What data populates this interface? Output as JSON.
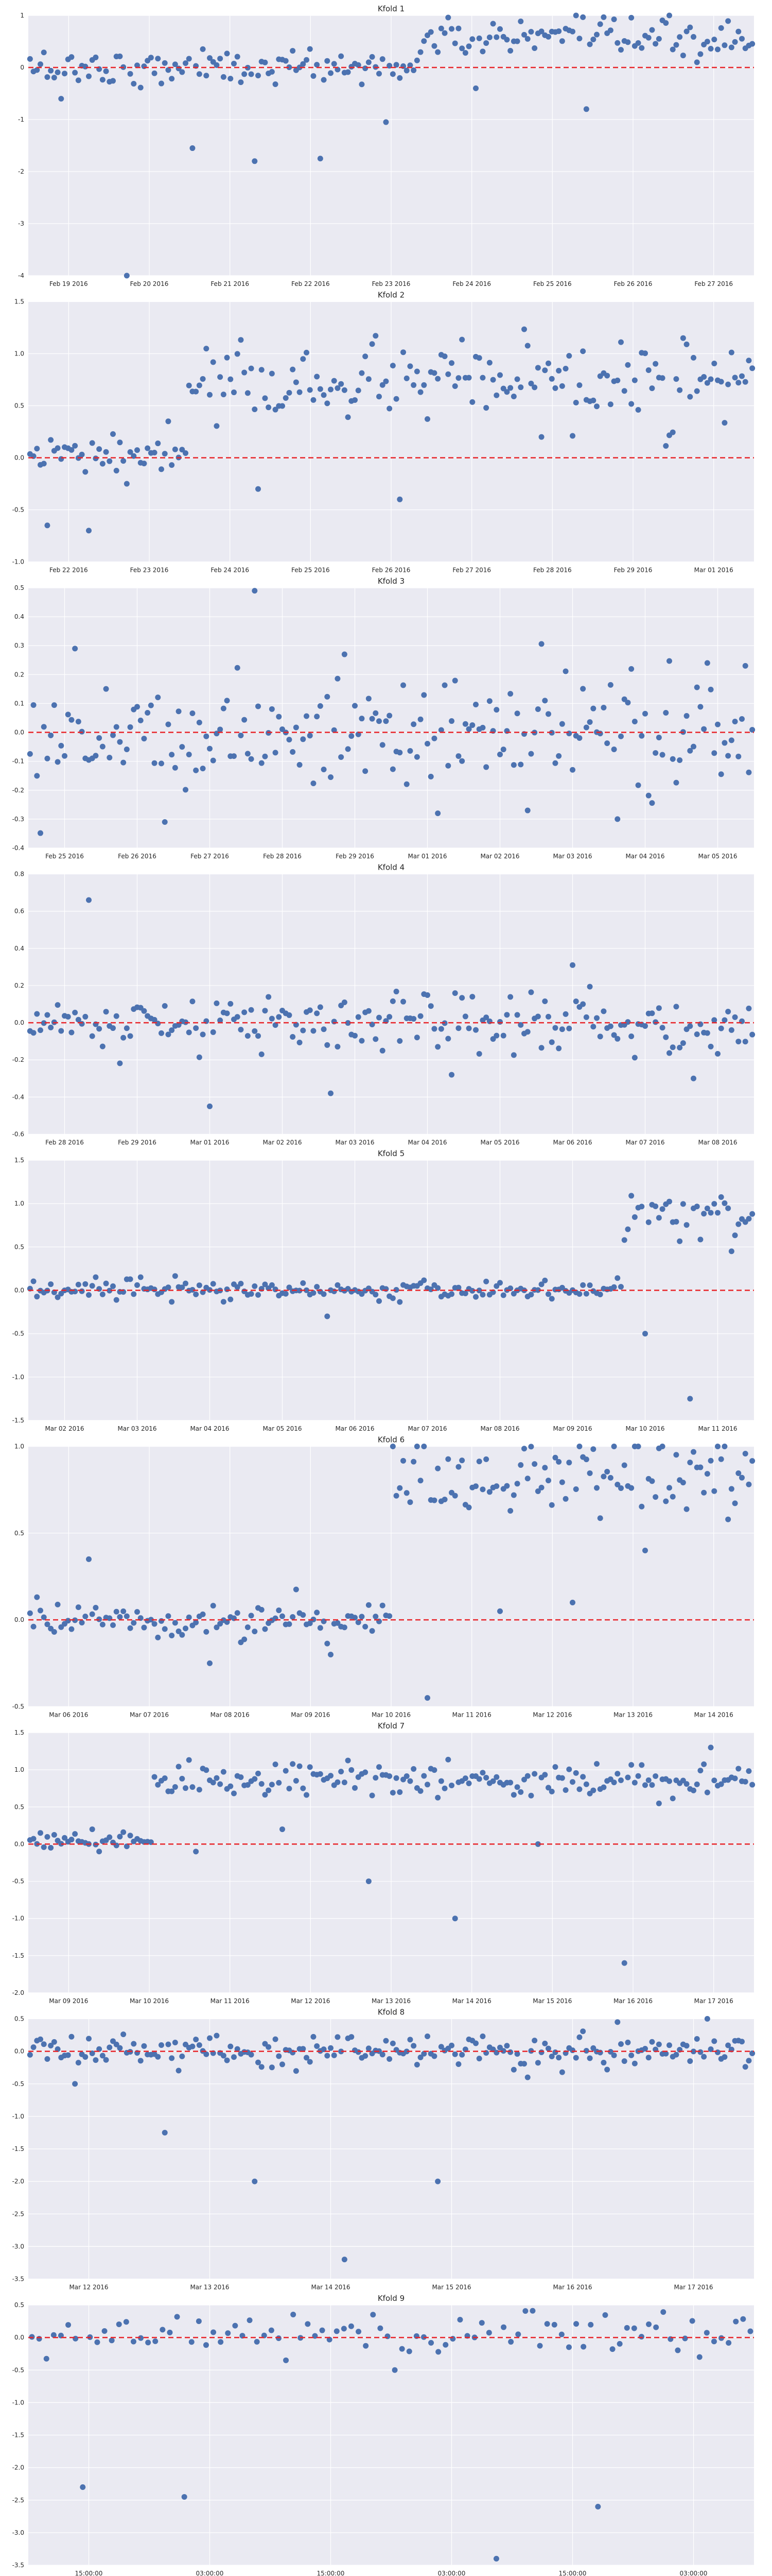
{
  "colors": {
    "plot_background": "#eaeaf2",
    "grid": "#ffffff",
    "points": "#4c72b0",
    "zero_line": "#e8262b",
    "text": "#262626"
  },
  "chart_data": [
    {
      "type": "scatter",
      "title": "Kfold 1",
      "ylim": [
        -4,
        1
      ],
      "yticks": [
        -4,
        -3,
        -2,
        -1,
        0,
        1
      ],
      "xticks": [
        "Feb 19 2016",
        "Feb 20 2016",
        "Feb 21 2016",
        "Feb 22 2016",
        "Feb 23 2016",
        "Feb 24 2016",
        "Feb 25 2016",
        "Feb 26 2016",
        "Feb 27 2016"
      ],
      "grid": true,
      "reference_line": 0,
      "segments": [
        {
          "mean": 0.0,
          "spread": 0.17,
          "outliers": [
            -0.6,
            -4.0,
            -1.55,
            -1.8,
            -1.75,
            -1.05
          ]
        },
        {
          "mean": 0.55,
          "spread": 0.18,
          "outliers": [
            -0.4,
            -0.8,
            0.1
          ]
        }
      ]
    },
    {
      "type": "scatter",
      "title": "Kfold 2",
      "ylim": [
        -1,
        1.5
      ],
      "yticks": [
        -1.0,
        -0.5,
        0.0,
        0.5,
        1.0,
        1.5
      ],
      "xticks": [
        "Feb 22 2016",
        "Feb 23 2016",
        "Feb 24 2016",
        "Feb 25 2016",
        "Feb 26 2016",
        "Feb 27 2016",
        "Feb 28 2016",
        "Feb 29 2016",
        "Mar 01 2016"
      ],
      "grid": true,
      "reference_line": 0,
      "segments": [
        {
          "mean": 0.02,
          "spread": 0.09,
          "outliers": [
            -0.65,
            -0.7,
            -0.25,
            0.35
          ]
        },
        {
          "mean": 0.7,
          "spread": 0.18,
          "outliers": [
            -0.3,
            -0.4,
            0.2,
            1.15
          ]
        }
      ]
    },
    {
      "type": "scatter",
      "title": "Kfold 3",
      "ylim": [
        -0.4,
        0.5
      ],
      "yticks": [
        -0.4,
        -0.3,
        -0.2,
        -0.1,
        0.0,
        0.1,
        0.2,
        0.3,
        0.4,
        0.5
      ],
      "xticks": [
        "Feb 25 2016",
        "Feb 26 2016",
        "Feb 27 2016",
        "Feb 28 2016",
        "Feb 29 2016",
        "Mar 01 2016",
        "Mar 02 2016",
        "Mar 03 2016",
        "Mar 04 2016",
        "Mar 05 2016"
      ],
      "grid": true,
      "reference_line": 0,
      "segments": [
        {
          "mean": 0.0,
          "spread": 0.1,
          "outliers": [
            0.29,
            -0.31,
            0.49,
            0.27,
            -0.28,
            -0.27,
            -0.3,
            0.24
          ]
        }
      ]
    },
    {
      "type": "scatter",
      "title": "Kfold 4",
      "ylim": [
        -0.6,
        0.8
      ],
      "yticks": [
        -0.6,
        -0.4,
        -0.2,
        0.0,
        0.2,
        0.4,
        0.6,
        0.8
      ],
      "xticks": [
        "Feb 28 2016",
        "Feb 29 2016",
        "Mar 01 2016",
        "Mar 02 2016",
        "Mar 03 2016",
        "Mar 04 2016",
        "Mar 05 2016",
        "Mar 06 2016",
        "Mar 07 2016",
        "Mar 08 2016"
      ],
      "grid": true,
      "reference_line": 0,
      "segments": [
        {
          "mean": 0.0,
          "spread": 0.08,
          "outliers": [
            0.66,
            -0.45,
            -0.38,
            -0.28,
            0.31,
            -0.3
          ]
        }
      ]
    },
    {
      "type": "scatter",
      "title": "Kfold 5",
      "ylim": [
        -1.5,
        1.5
      ],
      "yticks": [
        -1.5,
        -1.0,
        -0.5,
        0.0,
        0.5,
        1.0,
        1.5
      ],
      "xticks": [
        "Mar 02 2016",
        "Mar 03 2016",
        "Mar 04 2016",
        "Mar 05 2016",
        "Mar 06 2016",
        "Mar 07 2016",
        "Mar 08 2016",
        "Mar 09 2016",
        "Mar 10 2016",
        "Mar 11 2016"
      ],
      "grid": true,
      "reference_line": 0,
      "segments": [
        {
          "mean": 0.0,
          "spread": 0.06,
          "outliers": [
            -0.3
          ]
        },
        {
          "mean": 0.85,
          "spread": 0.12,
          "outliers": [
            -0.5,
            -1.25,
            0.45
          ]
        }
      ]
    },
    {
      "type": "scatter",
      "title": "Kfold 6",
      "ylim": [
        -0.5,
        1.0
      ],
      "yticks": [
        -0.5,
        0.0,
        0.5,
        1.0
      ],
      "xticks": [
        "Mar 06 2016",
        "Mar 07 2016",
        "Mar 08 2016",
        "Mar 09 2016",
        "Mar 10 2016",
        "Mar 11 2016",
        "Mar 12 2016",
        "Mar 13 2016",
        "Mar 14 2016"
      ],
      "grid": true,
      "reference_line": 0,
      "segments": [
        {
          "mean": 0.0,
          "spread": 0.06,
          "outliers": [
            0.35,
            -0.25,
            -0.2
          ]
        },
        {
          "mean": 0.85,
          "spread": 0.12,
          "outliers": [
            -0.45,
            0.05,
            0.1,
            0.4,
            1.15
          ]
        }
      ]
    },
    {
      "type": "scatter",
      "title": "Kfold 7",
      "ylim": [
        -2.0,
        1.5
      ],
      "yticks": [
        -2.0,
        -1.5,
        -1.0,
        -0.5,
        0.0,
        0.5,
        1.0,
        1.5
      ],
      "xticks": [
        "Mar 09 2016",
        "Mar 10 2016",
        "Mar 11 2016",
        "Mar 12 2016",
        "Mar 13 2016",
        "Mar 14 2016",
        "Mar 15 2016",
        "Mar 16 2016",
        "Mar 17 2016"
      ],
      "grid": true,
      "reference_line": 0,
      "segments": [
        {
          "mean": 0.05,
          "spread": 0.06,
          "outliers": [
            0.2
          ]
        },
        {
          "mean": 0.85,
          "spread": 0.12,
          "outliers": [
            -0.1,
            0.2,
            -0.5,
            -1.0,
            0.0,
            -1.6,
            1.3
          ]
        }
      ]
    },
    {
      "type": "scatter",
      "title": "Kfold 8",
      "ylim": [
        -3.5,
        0.5
      ],
      "yticks": [
        -3.5,
        -3.0,
        -2.5,
        -2.0,
        -1.5,
        -1.0,
        -0.5,
        0.0,
        0.5
      ],
      "xticks": [
        "Mar 12 2016",
        "Mar 13 2016",
        "Mar 14 2016",
        "Mar 15 2016",
        "Mar 16 2016",
        "Mar 17 2016"
      ],
      "grid": true,
      "reference_line": 0,
      "segments": [
        {
          "mean": 0.0,
          "spread": 0.12,
          "outliers": [
            -0.5,
            -1.25,
            -2.0,
            -3.2,
            -2.0,
            -0.4,
            0.45,
            0.5
          ]
        }
      ]
    },
    {
      "type": "scatter",
      "title": "Kfold 9",
      "ylim": [
        -3.5,
        0.5
      ],
      "yticks": [
        -3.5,
        -3.0,
        -2.5,
        -2.0,
        -1.5,
        -1.0,
        -0.5,
        0.0,
        0.5
      ],
      "xticks": [
        "15:00:00",
        "03:00:00",
        "15:00:00",
        "03:00:00",
        "15:00:00",
        "03:00:00"
      ],
      "grid": true,
      "reference_line": 0,
      "segments": [
        {
          "mean": 0.05,
          "spread": 0.15,
          "outliers": [
            -2.3,
            -2.45,
            -0.35,
            -0.5,
            -3.4,
            -2.6,
            -0.3
          ]
        }
      ]
    }
  ]
}
